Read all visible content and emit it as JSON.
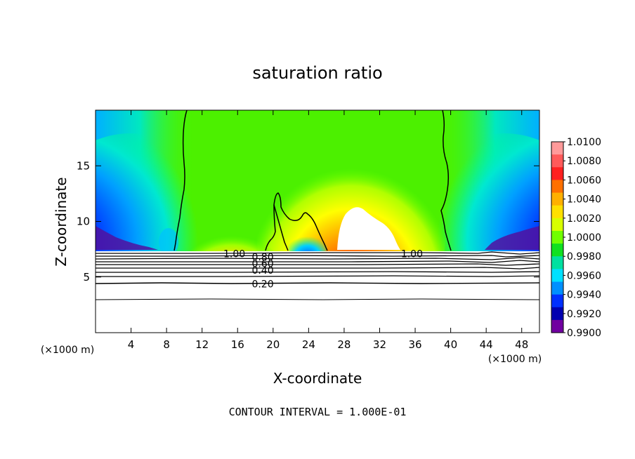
{
  "chart_data": {
    "type": "heatmap",
    "title": "saturation ratio",
    "xlabel": "X-coordinate",
    "ylabel": "Z-coordinate",
    "x_unit": "(×1000 m)",
    "xlim": [
      0,
      50
    ],
    "ylim": [
      0,
      20
    ],
    "x_ticks": [
      4,
      8,
      12,
      16,
      20,
      24,
      28,
      32,
      36,
      40,
      44,
      48
    ],
    "y_ticks": [
      5,
      10,
      15
    ],
    "colorbar": {
      "levels": [
        "1.0100",
        "1.0080",
        "1.0060",
        "1.0040",
        "1.0020",
        "1.0000",
        "0.9980",
        "0.9960",
        "0.9940",
        "0.9920",
        "0.9900"
      ],
      "colors": [
        "#ff9a9a",
        "#ff5a5a",
        "#ff2020",
        "#ff7000",
        "#ffb000",
        "#ffe000",
        "#d8ff00",
        "#70ff00",
        "#10e020",
        "#00e0a0",
        "#00e0ff",
        "#0090ff",
        "#0030ff",
        "#0000b0",
        "#7000a0"
      ]
    },
    "contours": [
      {
        "level": "1.00",
        "kind": "line labels near z≈7"
      },
      {
        "level": "0.80"
      },
      {
        "level": "0.60"
      },
      {
        "level": "0.40"
      },
      {
        "level": "0.20"
      }
    ],
    "contour_labels": [
      {
        "text": "1.00",
        "x": 14.4,
        "y": 7.1
      },
      {
        "text": "1.00",
        "x": 34.4,
        "y": 7.1
      },
      {
        "text": "0.80",
        "x": 17.6,
        "y": 6.8
      },
      {
        "text": "0.60",
        "x": 17.6,
        "y": 6.2
      },
      {
        "text": "0.40",
        "x": 17.6,
        "y": 5.6
      },
      {
        "text": "0.20",
        "x": 17.6,
        "y": 4.4
      }
    ],
    "footer": "CONTOUR INTERVAL = 1.000E-01"
  }
}
